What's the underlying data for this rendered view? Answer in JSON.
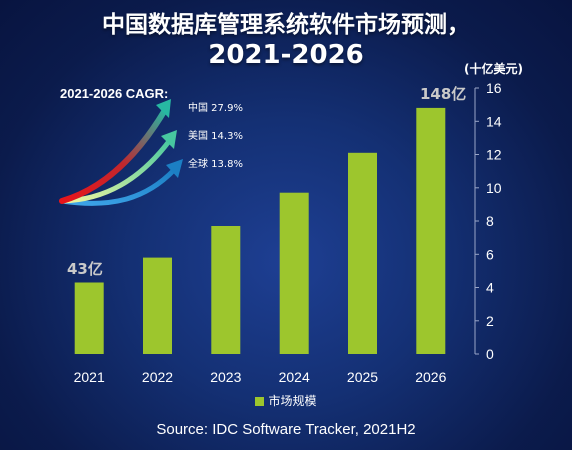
{
  "title": {
    "line1": "中国数据库管理系统软件市场预测，",
    "line2": "2021-2026"
  },
  "unit_label": "(十亿美元)",
  "cagr": {
    "heading": "2021-2026 CAGR:",
    "items": [
      {
        "label": "中国 27.9%",
        "color": "#d7191c"
      },
      {
        "label": "美国 14.3%",
        "color": "#7ee0a6"
      },
      {
        "label": "全球 13.8%",
        "color": "#2b8fd6"
      }
    ]
  },
  "callouts": {
    "first": "43亿",
    "last": "148亿"
  },
  "legend_label": "市场规模",
  "source": "Source: IDC Software Tracker, 2021H2",
  "colors": {
    "bar": "#9dc62d",
    "text": "#ffffff",
    "axis_line": "#9aa6c8",
    "background": "#143074"
  },
  "chart_data": {
    "type": "bar",
    "categories": [
      "2021",
      "2022",
      "2023",
      "2024",
      "2025",
      "2026"
    ],
    "series": [
      {
        "name": "市场规模",
        "values": [
          4.3,
          5.8,
          7.7,
          9.7,
          12.1,
          14.8
        ]
      }
    ],
    "ylabel": "(十亿美元)",
    "ylim": [
      0,
      16
    ],
    "yticks": [
      0,
      2,
      4,
      6,
      8,
      10,
      12,
      14,
      16
    ],
    "y_axis_position": "right",
    "grid": false,
    "legend_position": "bottom"
  }
}
